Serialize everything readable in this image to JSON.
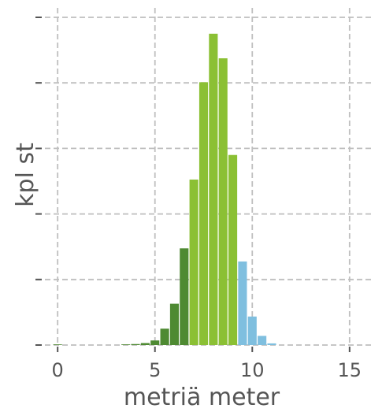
{
  "chart_data": {
    "type": "bar",
    "title": "",
    "xlabel": "metriä meter",
    "ylabel": "kpl st",
    "xlim": [
      -1.1,
      16.1
    ],
    "ylim": [
      0,
      100
    ],
    "x_ticks": [
      0,
      5,
      10,
      15
    ],
    "x_tick_labels": [
      "0",
      "5",
      "10",
      "15"
    ],
    "y_ticks": [
      0,
      20,
      40,
      60,
      80,
      100
    ],
    "y_tick_labels_visible": false,
    "grid": true,
    "legend": "none",
    "colors": {
      "dark_green": "#4e8a32",
      "light_green": "#8bc034",
      "light_blue": "#7fbfdf",
      "grid": "#bfbfbf",
      "text": "#555555"
    },
    "bar_width": 0.45,
    "series": [
      {
        "color_key": "dark_green",
        "x": [
          0,
          0.5,
          1,
          1.5,
          2,
          2.5,
          3,
          3.5,
          4,
          4.5,
          5,
          5.5,
          6,
          6.5
        ],
        "values": [
          0.2,
          0,
          0,
          0,
          0,
          0,
          0,
          0.2,
          0.3,
          0.6,
          1.4,
          5,
          12.6,
          29.5
        ]
      },
      {
        "color_key": "light_green",
        "x": [
          7,
          7.5,
          8,
          8.5,
          9
        ],
        "values": [
          50.5,
          80.2,
          95,
          87.5,
          58
        ]
      },
      {
        "color_key": "light_blue",
        "x": [
          9.5,
          10,
          10.5,
          11
        ],
        "values": [
          25.5,
          8.7,
          2.8,
          0.5
        ]
      }
    ]
  }
}
